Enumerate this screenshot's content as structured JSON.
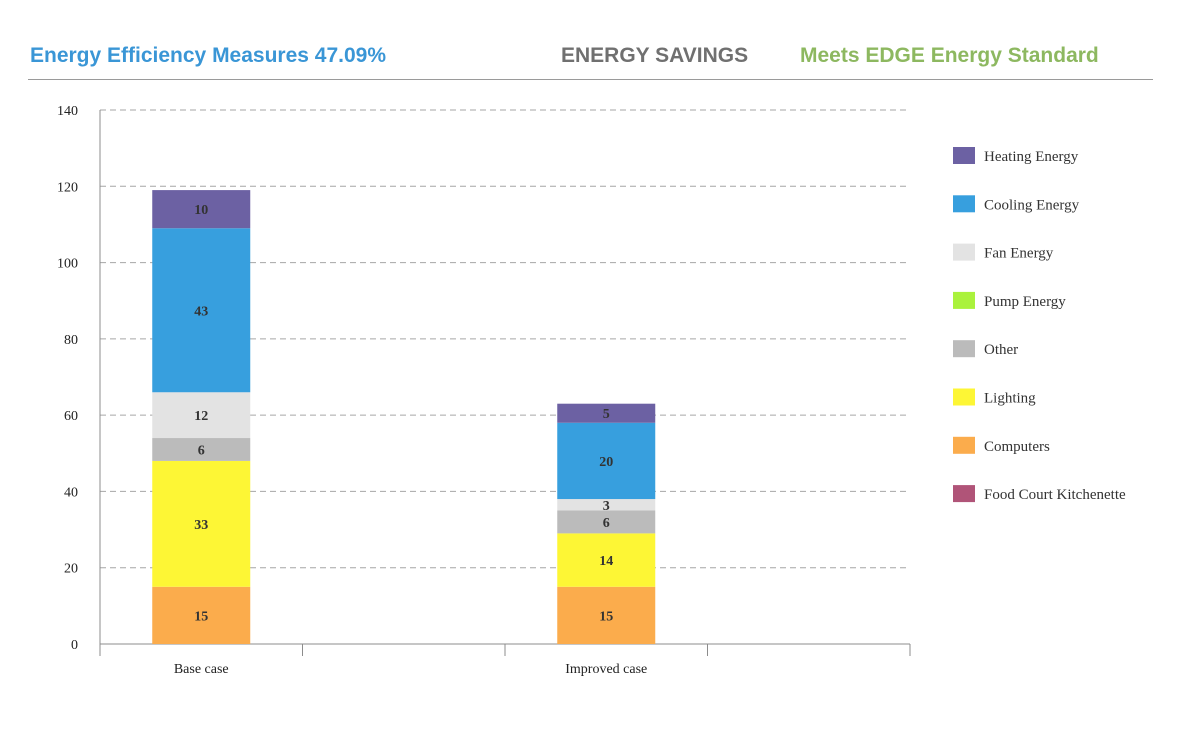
{
  "header": {
    "left": "Energy Efficiency Measures 47.09%",
    "center": "ENERGY SAVINGS",
    "right": "Meets EDGE Energy Standard",
    "colors": {
      "left": "#3a96d6",
      "center": "#707070",
      "right": "#8db860"
    }
  },
  "chart_data": {
    "type": "bar",
    "stacked": true,
    "categories": [
      "Base case",
      "Improved case"
    ],
    "ylim": [
      0,
      140
    ],
    "yticks": [
      0,
      20,
      40,
      60,
      80,
      100,
      120,
      140
    ],
    "grid": true,
    "legend_position": "right",
    "series": [
      {
        "name": "Computers",
        "color": "#fbac4c",
        "values": [
          15,
          15
        ],
        "labels": [
          "15",
          "15"
        ]
      },
      {
        "name": "Food Court Kitchenette",
        "color": "#b05478",
        "values": [
          0,
          0
        ],
        "labels": [
          "-",
          "-"
        ]
      },
      {
        "name": "Lighting",
        "color": "#fdf635",
        "values": [
          33,
          14
        ],
        "labels": [
          "33",
          "14"
        ]
      },
      {
        "name": "Pump Energy",
        "color": "#aaf23c",
        "values": [
          0,
          0
        ],
        "labels": [
          "",
          ""
        ]
      },
      {
        "name": "Other",
        "color": "#bbbbbb",
        "values": [
          6,
          6
        ],
        "labels": [
          "6",
          "6"
        ]
      },
      {
        "name": "Fan Energy",
        "color": "#e3e3e3",
        "values": [
          12,
          3
        ],
        "labels": [
          "12",
          "3"
        ]
      },
      {
        "name": "Cooling Energy",
        "color": "#379fde",
        "values": [
          43,
          20
        ],
        "labels": [
          "43",
          "20"
        ]
      },
      {
        "name": "Heating Energy",
        "color": "#6c61a3",
        "values": [
          10,
          5
        ],
        "labels": [
          "10",
          "5"
        ]
      }
    ],
    "legend_order": [
      "Heating Energy",
      "Cooling Energy",
      "Fan Energy",
      "Pump Energy",
      "Other",
      "Lighting",
      "Computers",
      "Food Court Kitchenette"
    ]
  }
}
